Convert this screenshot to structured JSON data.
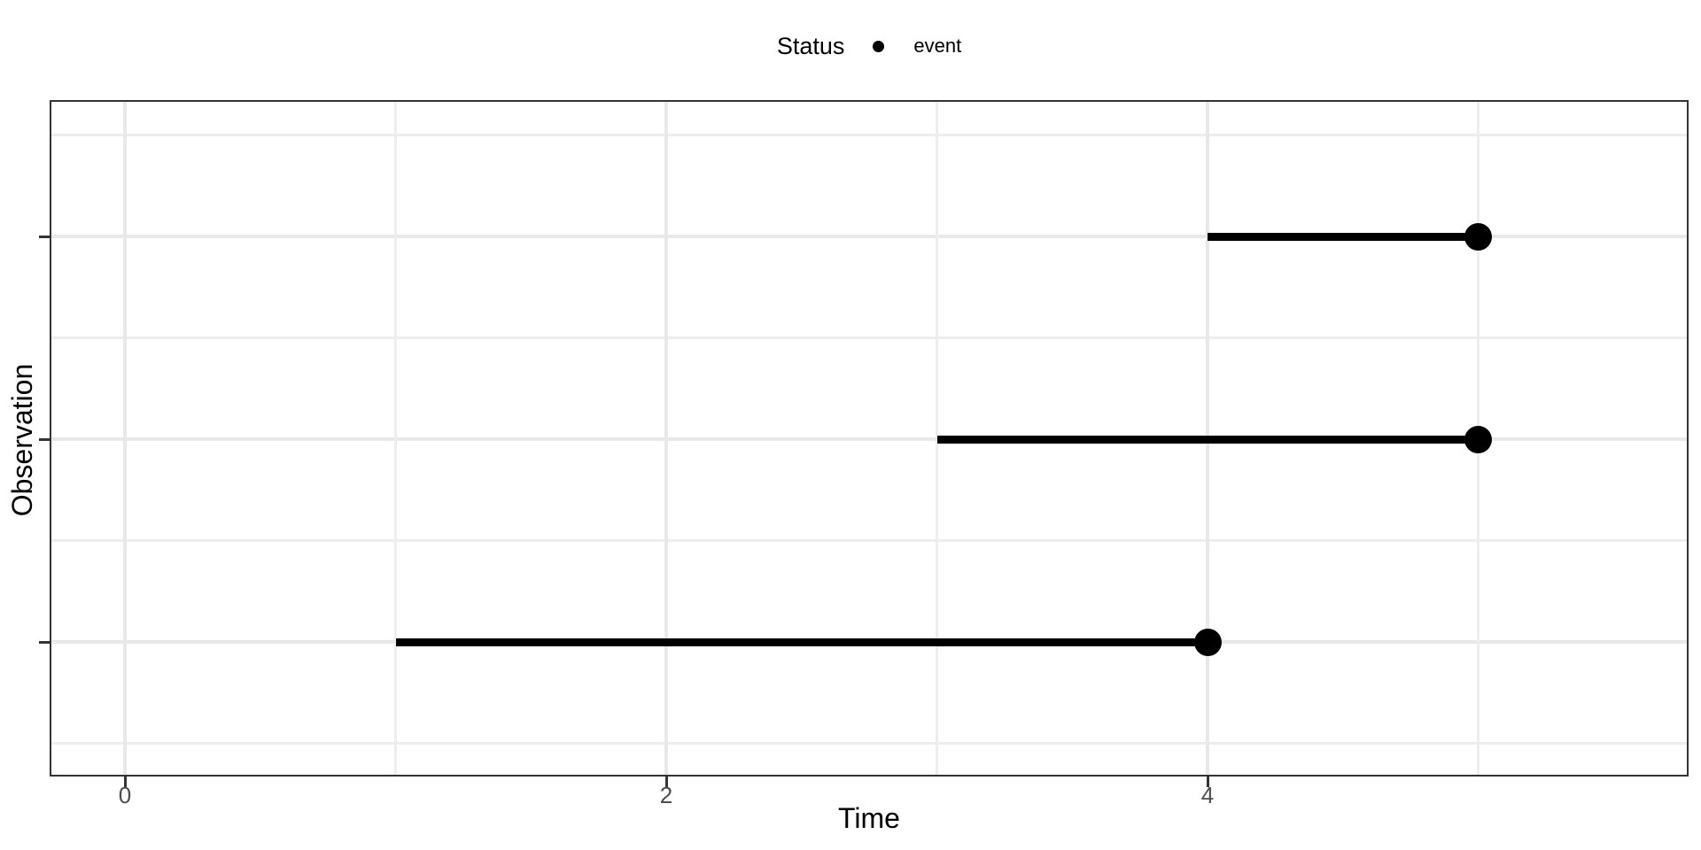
{
  "legend": {
    "title": "Status",
    "items": [
      {
        "label": "event",
        "marker": "filled-circle",
        "color": "#000000"
      }
    ]
  },
  "x_axis": {
    "title": "Time",
    "tick_labels": [
      "0",
      "2",
      "4"
    ],
    "tick_values": [
      0,
      2,
      4
    ]
  },
  "y_axis": {
    "title": "Observation",
    "tick_labels": [
      "",
      "",
      ""
    ]
  },
  "chart_data": {
    "type": "scatter",
    "subtype": "horizontal-segment-event-plot",
    "title": "",
    "xlabel": "Time",
    "ylabel": "Observation",
    "legend_title": "Status",
    "legend_entries": [
      "event"
    ],
    "legend_position": "top-center",
    "grid": true,
    "x_major_gridlines": [
      0,
      2,
      4
    ],
    "x_minor_gridlines": [
      1,
      3,
      5
    ],
    "xlim": [
      -0.275,
      5.775
    ],
    "y_rows": 3,
    "series": [
      {
        "name": "event",
        "marker": "filled-circle",
        "color": "#000000",
        "observations": [
          {
            "row": 3,
            "start": 4,
            "end": 5,
            "event_time": 5,
            "status": "event"
          },
          {
            "row": 2,
            "start": 3,
            "end": 5,
            "event_time": 5,
            "status": "event"
          },
          {
            "row": 1,
            "start": 1,
            "end": 4,
            "event_time": 4,
            "status": "event"
          }
        ]
      }
    ]
  },
  "colors": {
    "segment": "#000000",
    "event_point": "#000000",
    "grid_major": "#e8e8e8",
    "grid_minor": "#ededed",
    "panel_border": "#333333",
    "tick": "#333333",
    "tick_label": "#4d4d4d",
    "axis_title": "#000000",
    "background": "#ffffff"
  }
}
